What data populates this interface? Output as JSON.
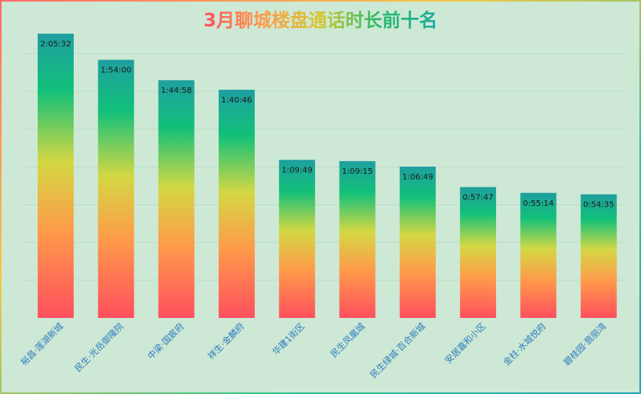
{
  "colors": {
    "background": "#cde9d5",
    "gridline": "#bcdcc6",
    "bar_top": "#1f9fa0",
    "bar_upper": "#12c07a",
    "bar_mid": "#d4d844",
    "bar_lower": "#ff9a4a",
    "bar_bottom": "#ff4f5e",
    "category_label": "#2e7bbf",
    "title_gradient": [
      "#ff4f5e",
      "#ff9a4a",
      "#d4c830",
      "#28b86a",
      "#1ca9a0"
    ]
  },
  "chart_data": {
    "type": "bar",
    "title": "3月聊城楼盘通话时长前十名",
    "xlabel": "",
    "ylabel": "",
    "grid": true,
    "legend": "none",
    "ylim_seconds": [
      0,
      8000
    ],
    "categories": [
      "裕昌·莲湖新城",
      "民生·光岳御隆院",
      "中梁·国宸府",
      "祥生·金麟府",
      "华建1街区",
      "民生凤凰城",
      "民生绿城·百合新城",
      "安居嘉和小区",
      "金柱·水城悦府",
      "碧桂园·翡丽湾"
    ],
    "value_labels": [
      "2:05:32",
      "1:54:00",
      "1:44:58",
      "1:40:46",
      "1:09:49",
      "1:09:15",
      "1:06:49",
      "0:57:47",
      "0:55:14",
      "0:54:35"
    ],
    "values_seconds": [
      7532,
      6840,
      6298,
      6046,
      4189,
      4155,
      4009,
      3467,
      3314,
      3275
    ]
  }
}
